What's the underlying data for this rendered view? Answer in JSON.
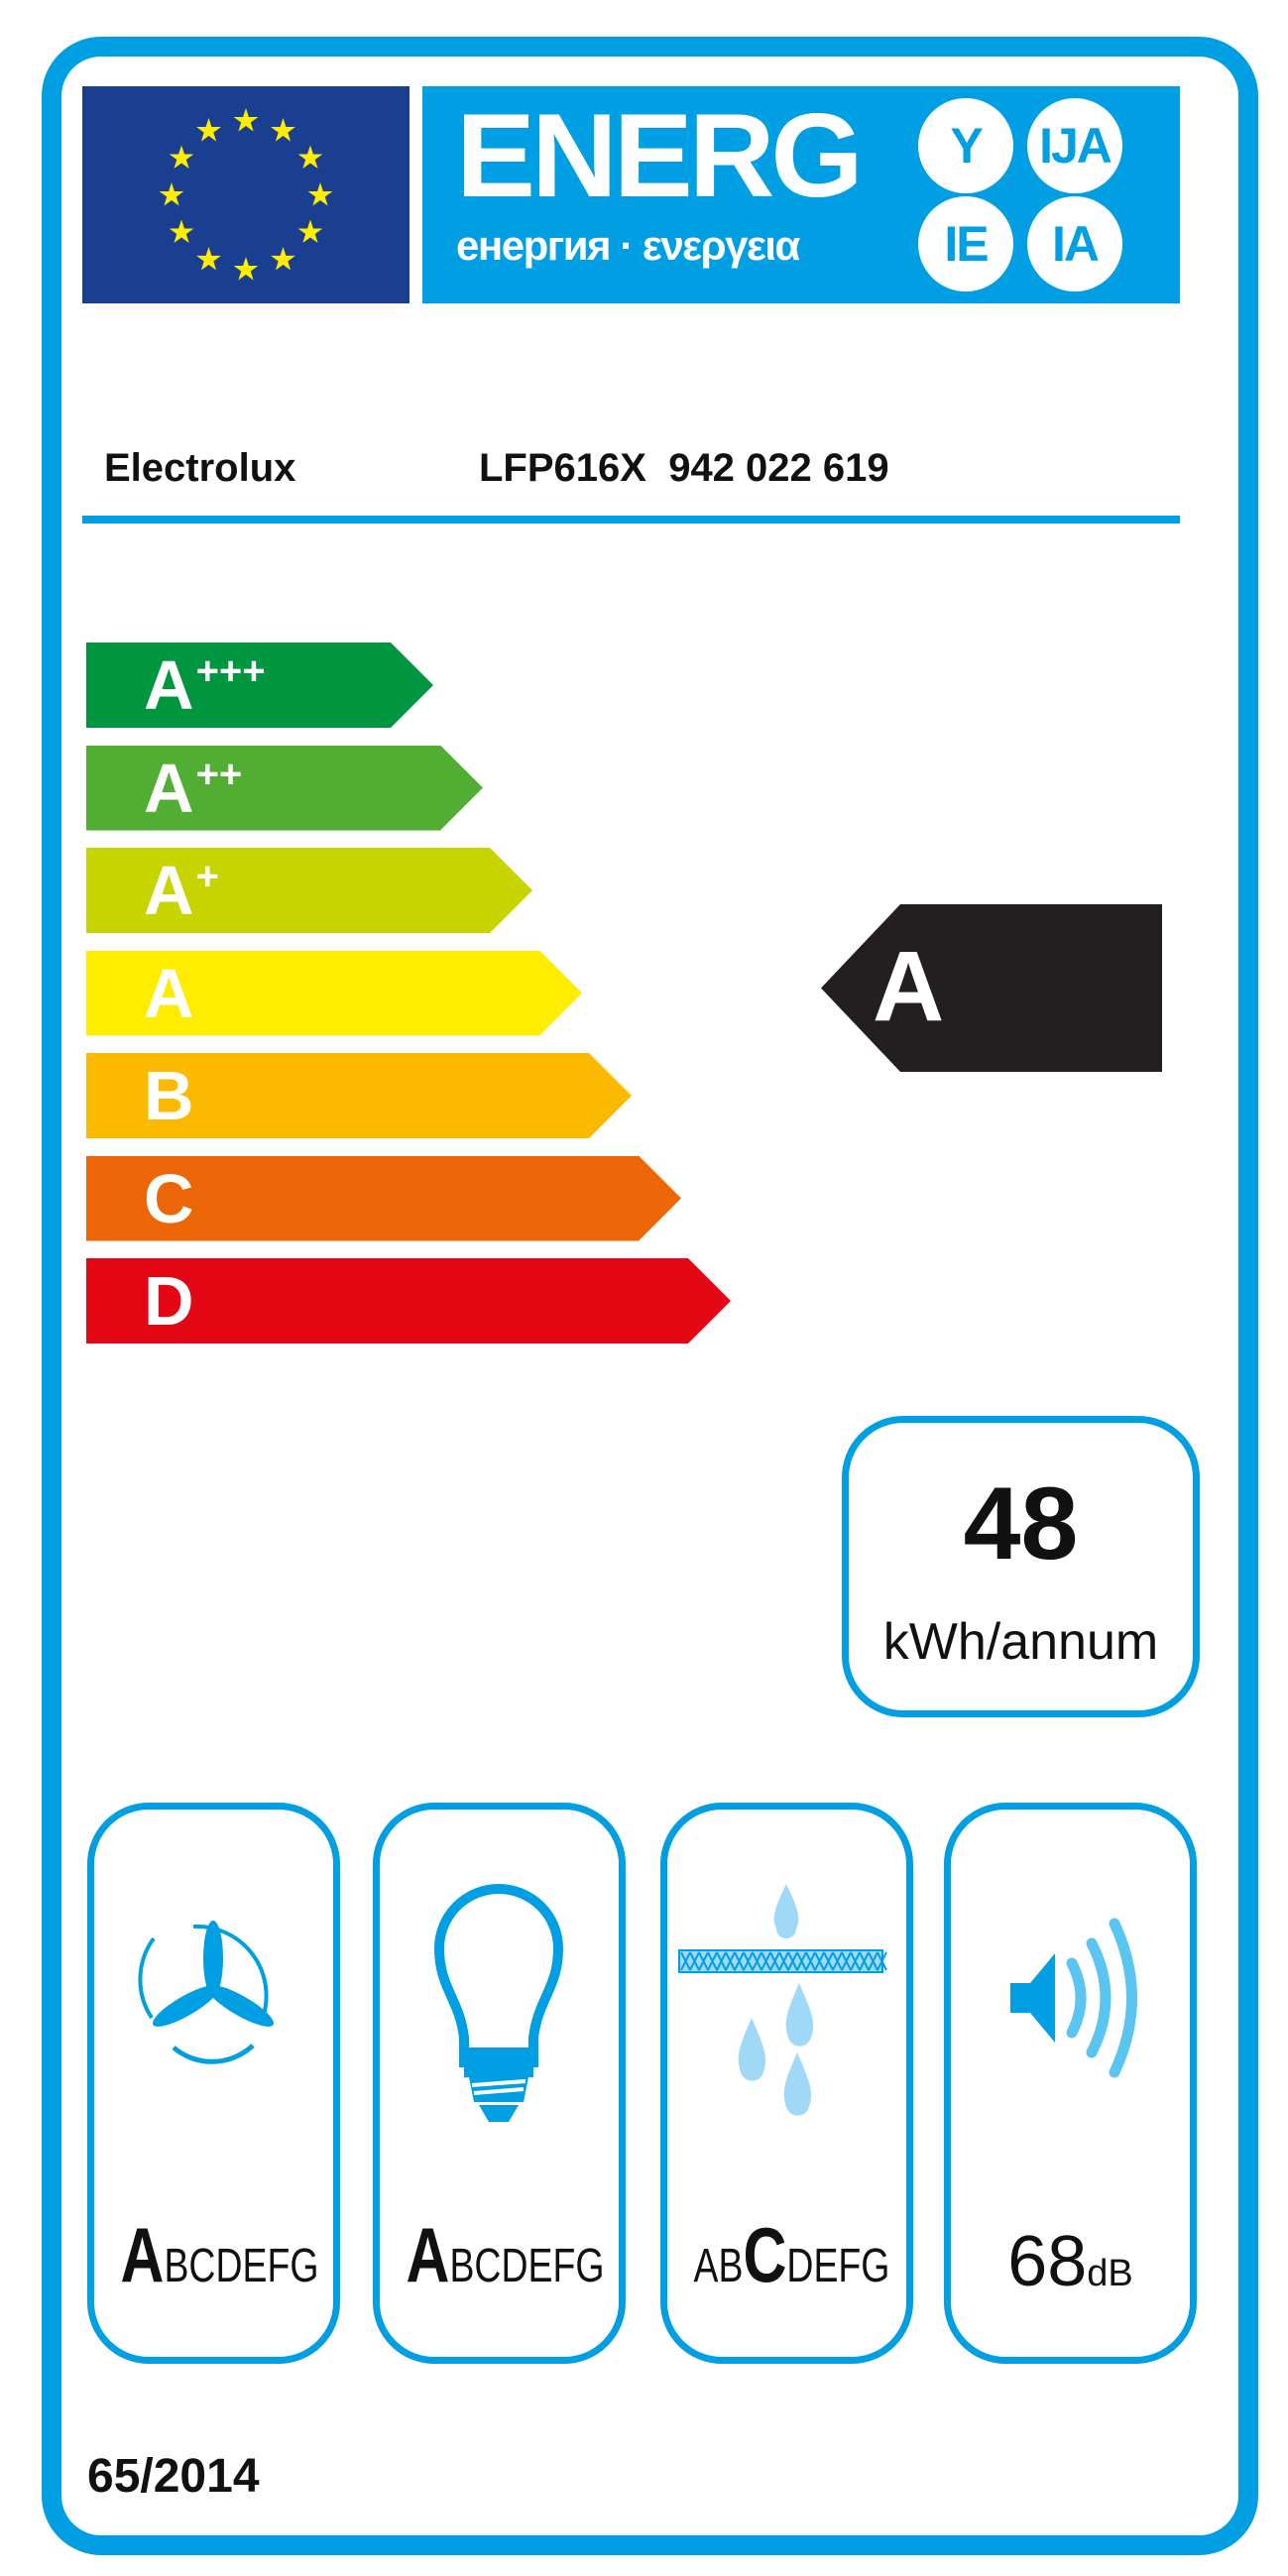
{
  "header": {
    "energy_word": "ENERG",
    "energy_subtitle": "енергия · ενεργεια",
    "suffixes": [
      "Y",
      "IJA",
      "IE",
      "IA"
    ]
  },
  "supplier": "Electrolux",
  "model": "LFP616X  942 022 619",
  "scale": [
    {
      "letter": "A",
      "plus": "+++",
      "color": "#009640"
    },
    {
      "letter": "A",
      "plus": "++",
      "color": "#52ae32"
    },
    {
      "letter": "A",
      "plus": "+",
      "color": "#c8d400"
    },
    {
      "letter": "A",
      "plus": "",
      "color": "#ffed00"
    },
    {
      "letter": "B",
      "plus": "",
      "color": "#fbba00"
    },
    {
      "letter": "C",
      "plus": "",
      "color": "#ec6608"
    },
    {
      "letter": "D",
      "plus": "",
      "color": "#e30613"
    }
  ],
  "rating": {
    "class": "A",
    "color": "#231f20"
  },
  "consumption": {
    "value": "48",
    "unit": "kWh/annum"
  },
  "classes": [
    {
      "icon": "fan-icon",
      "pre": "",
      "highlight": "A",
      "post": "BCDEFG"
    },
    {
      "icon": "light-bulb-icon",
      "pre": "",
      "highlight": "A",
      "post": "BCDEFG"
    },
    {
      "icon": "grease-filter-icon",
      "pre": "AB",
      "highlight": "C",
      "post": "DEFG"
    }
  ],
  "noise": {
    "icon": "speaker-icon",
    "value": "68",
    "unit": "dB"
  },
  "regulation": "65/2014",
  "colors": {
    "accent": "#009fe3",
    "flag": "#1a3f91",
    "stars": "#ffed00"
  }
}
